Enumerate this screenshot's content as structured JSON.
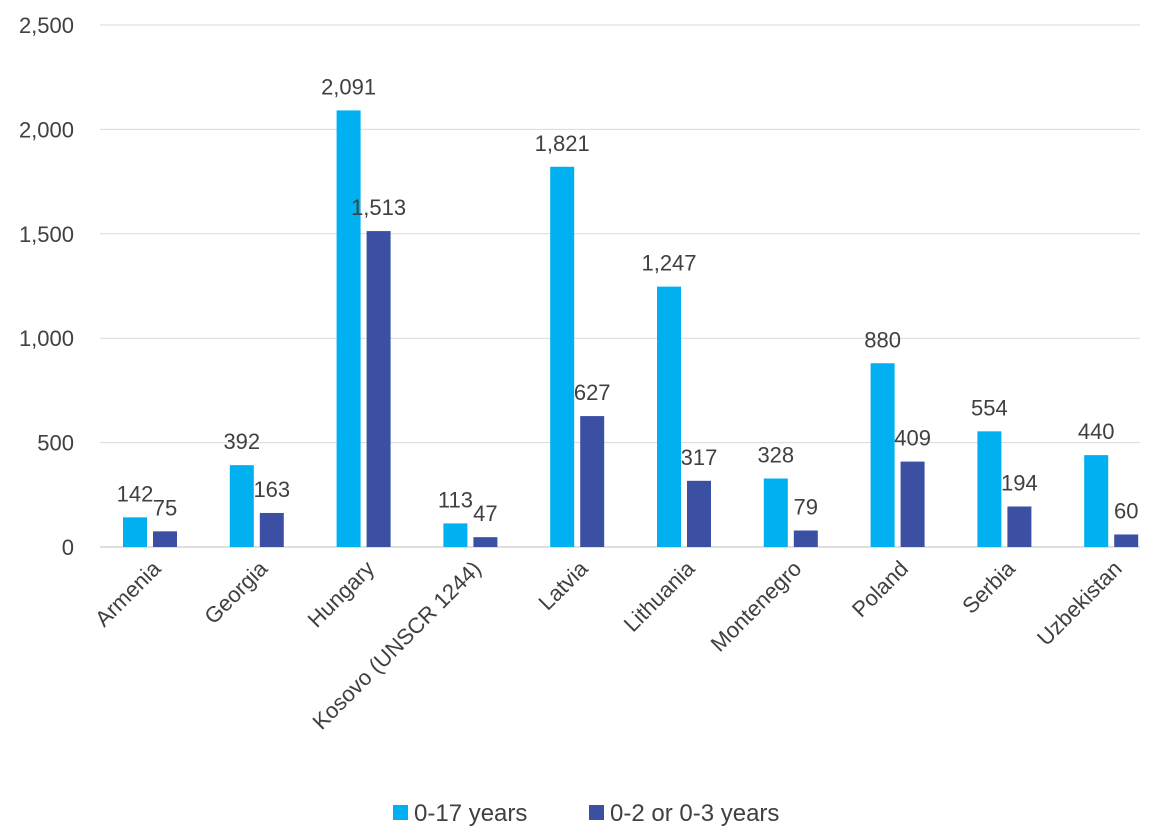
{
  "chart_data": {
    "type": "bar",
    "title": "",
    "xlabel": "",
    "ylabel": "",
    "ylim": [
      0,
      2500
    ],
    "yticks": [
      0,
      500,
      1000,
      1500,
      2000,
      2500
    ],
    "ytick_labels": [
      "0",
      "500",
      "1,000",
      "1,500",
      "2,000",
      "2,500"
    ],
    "grid": true,
    "legend_position": "bottom",
    "categories": [
      "Armenia",
      "Georgia",
      "Hungary",
      "Kosovo (UNSCR 1244)",
      "Latvia",
      "Lithuania",
      "Montenegro",
      "Poland",
      "Serbia",
      "Uzbekistan"
    ],
    "series": [
      {
        "name": "0-17 years",
        "color": "#00B0F0",
        "values": [
          142,
          392,
          2091,
          113,
          1821,
          1247,
          328,
          880,
          554,
          440
        ],
        "labels": [
          "142",
          "392",
          "2,091",
          "113",
          "1,821",
          "1,247",
          "328",
          "880",
          "554",
          "440"
        ]
      },
      {
        "name": "0-2 or 0-3 years",
        "color": "#3B4FA3",
        "values": [
          75,
          163,
          1513,
          47,
          627,
          317,
          79,
          409,
          194,
          60
        ],
        "labels": [
          "75",
          "163",
          "1,513",
          "47",
          "627",
          "317",
          "79",
          "409",
          "194",
          "60"
        ]
      }
    ]
  }
}
